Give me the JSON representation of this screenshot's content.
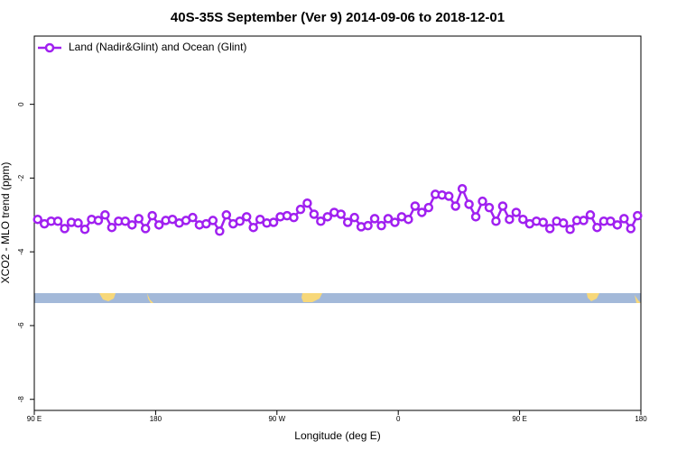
{
  "chart_data": {
    "type": "line",
    "title": "40S-35S September (Ver 9)   2014-09-06 to 2018-12-01",
    "xlabel": "Longitude (deg E)",
    "ylabel": "XCO2 - MLO trend (ppm)",
    "xlim": [
      90,
      540
    ],
    "ylim": [
      -8.3,
      1.85
    ],
    "xticks": [
      {
        "value": 90,
        "label": "90 E"
      },
      180,
      {
        "value": 270,
        "label": "90 W"
      },
      {
        "value": 360,
        "label": "0"
      },
      {
        "value": 450,
        "label": "90 E"
      },
      {
        "value": 540,
        "label": "180"
      }
    ],
    "yticks": [
      0,
      -2,
      -4,
      -6,
      -8
    ],
    "legend": "top-left",
    "x": [
      92.5,
      97.5,
      102.5,
      107.5,
      112.5,
      117.5,
      122.5,
      127.5,
      132.5,
      137.5,
      142.5,
      147.5,
      152.5,
      157.5,
      162.5,
      167.5,
      172.5,
      177.5,
      182.5,
      187.5,
      192.5,
      197.5,
      202.5,
      207.5,
      212.5,
      217.5,
      222.5,
      227.5,
      232.5,
      237.5,
      242.5,
      247.5,
      252.5,
      257.5,
      262.5,
      267.5,
      272.5,
      277.5,
      282.5,
      287.5,
      292.5,
      297.5,
      302.5,
      307.5,
      312.5,
      317.5,
      322.5,
      327.5,
      332.5,
      337.5,
      342.5,
      347.5,
      352.5,
      357.5,
      362.5,
      367.5,
      372.5,
      377.5,
      382.5,
      387.5,
      392.5,
      397.5,
      402.5,
      407.5,
      412.5,
      417.5,
      422.5,
      427.5,
      432.5,
      437.5,
      442.5,
      447.5,
      452.5,
      457.5,
      462.5,
      467.5,
      472.5,
      477.5,
      482.5,
      487.5,
      492.5,
      497.5,
      502.5,
      507.5,
      512.5,
      517.5,
      522.5,
      527.5,
      532.5,
      537.5
    ],
    "series": [
      {
        "name": "Land (Nadir&Glint) and Ocean (Glint)",
        "color": "#a020f0",
        "values": [
          -3.12,
          -3.24,
          -3.17,
          -3.17,
          -3.37,
          -3.2,
          -3.22,
          -3.39,
          -3.12,
          -3.15,
          -3.0,
          -3.34,
          -3.17,
          -3.17,
          -3.27,
          -3.1,
          -3.37,
          -3.02,
          -3.27,
          -3.15,
          -3.12,
          -3.22,
          -3.15,
          -3.07,
          -3.27,
          -3.24,
          -3.15,
          -3.44,
          -3.0,
          -3.24,
          -3.17,
          -3.05,
          -3.34,
          -3.12,
          -3.22,
          -3.2,
          -3.05,
          -3.02,
          -3.07,
          -2.85,
          -2.68,
          -2.98,
          -3.17,
          -3.05,
          -2.93,
          -2.98,
          -3.2,
          -3.07,
          -3.32,
          -3.29,
          -3.1,
          -3.29,
          -3.1,
          -3.2,
          -3.05,
          -3.12,
          -2.76,
          -2.93,
          -2.8,
          -2.44,
          -2.46,
          -2.49,
          -2.76,
          -2.29,
          -2.71,
          -3.05,
          -2.63,
          -2.8,
          -3.17,
          -2.76,
          -3.12,
          -2.93,
          -3.12,
          -3.24,
          -3.17,
          -3.2,
          -3.37,
          -3.17,
          -3.22,
          -3.39,
          -3.15,
          -3.15,
          -3.0,
          -3.34,
          -3.17,
          -3.17,
          -3.27,
          -3.1,
          -3.37,
          -3.02
        ]
      }
    ]
  }
}
